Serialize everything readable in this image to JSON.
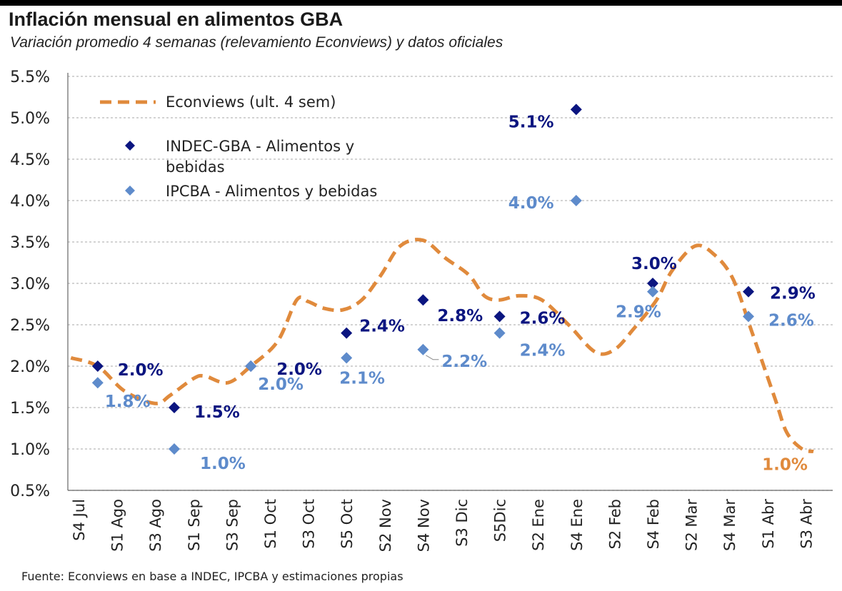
{
  "title": "Inflación mensual en alimentos GBA",
  "subtitle": "Variación promedio 4 semanas (relevamiento Econviews) y datos oficiales",
  "source": "Fuente: Econviews en base a INDEC, IPCBA y estimaciones propias",
  "colors": {
    "econviews": "#E08A3C",
    "indec": "#0B1580",
    "ipcba": "#5E8BCB",
    "grid": "#b9b9b9",
    "axis_text": "#222222"
  },
  "chart_data": {
    "type": "line",
    "categories": [
      "S4 Jul",
      "S1 Ago",
      "S3 Ago",
      "S1 Sep",
      "S3 Sep",
      "S1 Oct",
      "S3 Oct",
      "S5 Oct",
      "S2 Nov",
      "S4 Nov",
      "S3 Dic",
      "S5Dic",
      "S2 Ene",
      "S4 Ene",
      "S2 Feb",
      "S4 Feb",
      "S2 Mar",
      "S4 Mar",
      "S1 Abr",
      "S3 Abr"
    ],
    "ylim": [
      0.5,
      5.5
    ],
    "yticks": [
      "0.5%",
      "1.0%",
      "1.5%",
      "2.0%",
      "2.5%",
      "3.0%",
      "3.5%",
      "4.0%",
      "4.5%",
      "5.0%",
      "5.5%"
    ],
    "grid": true,
    "legend_position": "top-left",
    "series": [
      {
        "name": "Econviews (ult. 4 sem)",
        "style": "dashed-line",
        "points": [
          [
            -0.2,
            2.1
          ],
          [
            0.5,
            2.0
          ],
          [
            1.2,
            1.7
          ],
          [
            2.0,
            1.55
          ],
          [
            2.4,
            1.65
          ],
          [
            3.0,
            1.85
          ],
          [
            3.3,
            1.88
          ],
          [
            3.9,
            1.8
          ],
          [
            4.5,
            2.0
          ],
          [
            5.2,
            2.3
          ],
          [
            5.7,
            2.8
          ],
          [
            6.0,
            2.78
          ],
          [
            6.4,
            2.7
          ],
          [
            6.9,
            2.68
          ],
          [
            7.4,
            2.8
          ],
          [
            7.9,
            3.1
          ],
          [
            8.4,
            3.45
          ],
          [
            9.0,
            3.52
          ],
          [
            9.6,
            3.3
          ],
          [
            10.2,
            3.1
          ],
          [
            10.6,
            2.85
          ],
          [
            11.0,
            2.8
          ],
          [
            11.5,
            2.85
          ],
          [
            12.1,
            2.8
          ],
          [
            12.8,
            2.5
          ],
          [
            13.5,
            2.17
          ],
          [
            14.0,
            2.2
          ],
          [
            14.5,
            2.45
          ],
          [
            15.1,
            2.8
          ],
          [
            15.5,
            3.15
          ],
          [
            16.1,
            3.45
          ],
          [
            16.6,
            3.35
          ],
          [
            17.1,
            3.05
          ],
          [
            17.6,
            2.4
          ],
          [
            18.2,
            1.6
          ],
          [
            18.5,
            1.2
          ],
          [
            18.9,
            1.0
          ],
          [
            19.2,
            0.97
          ]
        ]
      },
      {
        "name": "INDEC-GBA - Alimentos y bebidas",
        "style": "diamond",
        "points": [
          {
            "x": 0.5,
            "y": 2.0,
            "label": "2.0%"
          },
          {
            "x": 2.5,
            "y": 1.5,
            "label": "1.5%"
          },
          {
            "x": 4.5,
            "y": 2.0,
            "label": "2.0%"
          },
          {
            "x": 7.0,
            "y": 2.4,
            "label": "2.4%"
          },
          {
            "x": 9.0,
            "y": 2.8,
            "label": "2.8%"
          },
          {
            "x": 11.0,
            "y": 2.6,
            "label": "2.6%"
          },
          {
            "x": 13.0,
            "y": 5.1,
            "label": "5.1%"
          },
          {
            "x": 15.0,
            "y": 3.0,
            "label": "3.0%"
          },
          {
            "x": 17.5,
            "y": 2.9,
            "label": "2.9%"
          }
        ]
      },
      {
        "name": "IPCBA - Alimentos y bebidas",
        "style": "diamond",
        "points": [
          {
            "x": 0.5,
            "y": 1.8,
            "label": "1.8%"
          },
          {
            "x": 2.5,
            "y": 1.0,
            "label": "1.0%"
          },
          {
            "x": 4.5,
            "y": 2.0,
            "label": "2.0%"
          },
          {
            "x": 7.0,
            "y": 2.1,
            "label": "2.1%"
          },
          {
            "x": 9.0,
            "y": 2.2,
            "label": "2.2%"
          },
          {
            "x": 11.0,
            "y": 2.4,
            "label": "2.4%"
          },
          {
            "x": 13.0,
            "y": 4.0,
            "label": "4.0%"
          },
          {
            "x": 15.0,
            "y": 2.9,
            "label": "2.9%"
          },
          {
            "x": 17.5,
            "y": 2.6,
            "label": "2.6%"
          }
        ]
      }
    ],
    "end_label": "1.0%",
    "legend_entries": [
      "Econviews (ult. 4 sem)",
      "INDEC-GBA - Alimentos y\nbebidas",
      "IPCBA - Alimentos y bebidas"
    ]
  }
}
